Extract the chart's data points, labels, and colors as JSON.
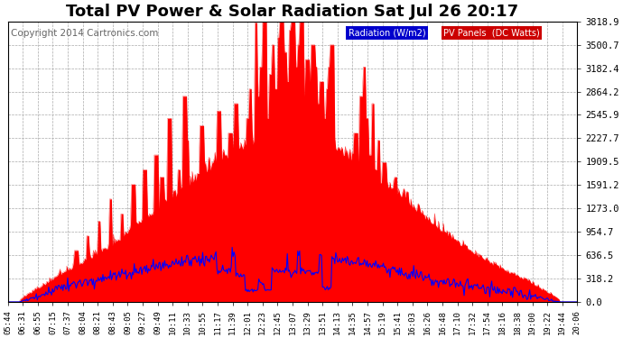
{
  "title": "Total PV Power & Solar Radiation Sat Jul 26 20:17",
  "copyright": "Copyright 2014 Cartronics.com",
  "legend_radiation": "Radiation (W/m2)",
  "legend_pv": "PV Panels  (DC Watts)",
  "legend_radiation_bg": "#0000cc",
  "legend_pv_bg": "#cc0000",
  "legend_text_color": "#ffffff",
  "ylim": [
    0,
    3818.9
  ],
  "yticks": [
    0.0,
    318.2,
    636.5,
    954.7,
    1273.0,
    1591.2,
    1909.5,
    2227.7,
    2545.9,
    2864.2,
    3182.4,
    3500.7,
    3818.9
  ],
  "background_color": "#ffffff",
  "plot_bg_color": "#ffffff",
  "grid_color": "#aaaaaa",
  "pv_color": "#ff0000",
  "radiation_color": "#0000ff",
  "title_fontsize": 13,
  "copyright_fontsize": 7.5,
  "xtick_fontsize": 6.5,
  "ytick_fontsize": 7.5,
  "x_labels": [
    "05:44",
    "06:31",
    "06:55",
    "07:15",
    "07:37",
    "08:04",
    "08:21",
    "08:43",
    "09:05",
    "09:27",
    "09:49",
    "10:11",
    "10:33",
    "10:55",
    "11:17",
    "11:39",
    "12:01",
    "12:23",
    "12:45",
    "13:07",
    "13:29",
    "13:51",
    "14:13",
    "14:35",
    "14:57",
    "15:19",
    "15:41",
    "16:03",
    "16:26",
    "16:48",
    "17:10",
    "17:32",
    "17:54",
    "18:16",
    "18:38",
    "19:00",
    "19:22",
    "19:44",
    "20:06"
  ]
}
